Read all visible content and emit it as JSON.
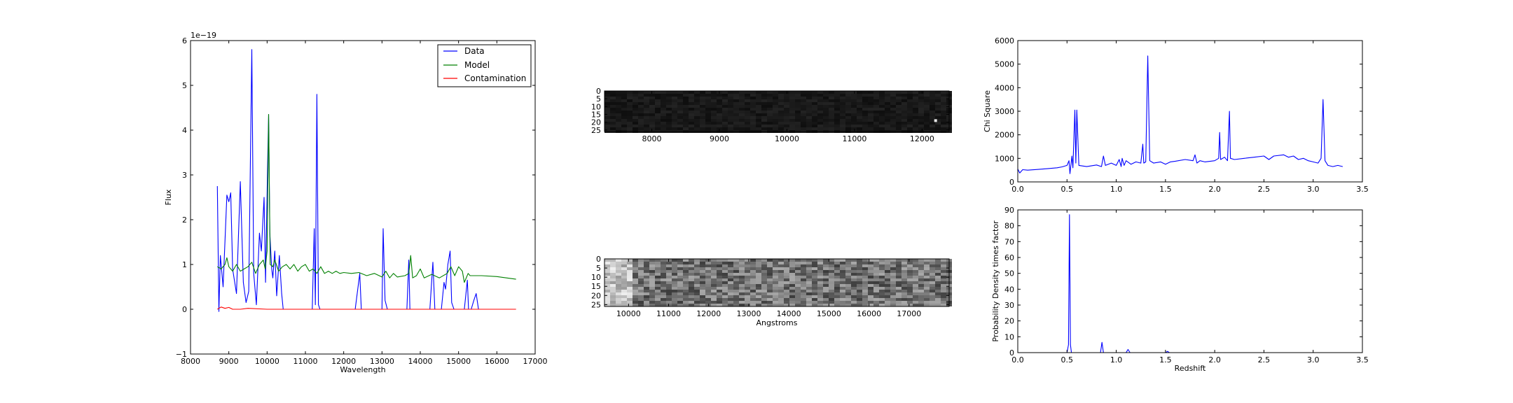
{
  "chart_data": [
    {
      "id": "spectrum",
      "type": "line",
      "xlabel": "Wavelength",
      "ylabel": "Flux",
      "offset_label": "1e−19",
      "xlim": [
        8000,
        17000
      ],
      "ylim": [
        -1,
        6
      ],
      "xticks": [
        8000,
        9000,
        10000,
        11000,
        12000,
        13000,
        14000,
        15000,
        16000,
        17000
      ],
      "yticks": [
        -1,
        0,
        1,
        2,
        3,
        4,
        5,
        6
      ],
      "legend": {
        "placement": "top-right"
      },
      "series": [
        {
          "name": "Data",
          "color": "#0000ff",
          "points": [
            [
              8700,
              2.75
            ],
            [
              8740,
              -0.05
            ],
            [
              8780,
              1.2
            ],
            [
              8850,
              0.5
            ],
            [
              8950,
              2.55
            ],
            [
              9000,
              2.4
            ],
            [
              9050,
              2.6
            ],
            [
              9100,
              0.9
            ],
            [
              9200,
              0.35
            ],
            [
              9300,
              2.85
            ],
            [
              9380,
              0.6
            ],
            [
              9450,
              0.15
            ],
            [
              9520,
              0.4
            ],
            [
              9600,
              5.8
            ],
            [
              9650,
              0.8
            ],
            [
              9720,
              0.1
            ],
            [
              9800,
              1.7
            ],
            [
              9850,
              1.3
            ],
            [
              9920,
              2.5
            ],
            [
              9960,
              0.6
            ],
            [
              10010,
              3.1
            ],
            [
              10040,
              4.35
            ],
            [
              10070,
              1.7
            ],
            [
              10120,
              0.9
            ],
            [
              10150,
              0.7
            ],
            [
              10200,
              1.3
            ],
            [
              10250,
              0.3
            ],
            [
              10320,
              1.2
            ],
            [
              10380,
              0.35
            ],
            [
              10420,
              0.0
            ],
            [
              11000,
              0.0
            ],
            [
              11180,
              0.0
            ],
            [
              11230,
              1.8
            ],
            [
              11260,
              0.1
            ],
            [
              11300,
              4.8
            ],
            [
              11340,
              0.1
            ],
            [
              11380,
              0.0
            ],
            [
              12300,
              0.0
            ],
            [
              12420,
              0.8
            ],
            [
              12460,
              0.0
            ],
            [
              13000,
              0.0
            ],
            [
              13030,
              1.8
            ],
            [
              13080,
              0.2
            ],
            [
              13140,
              0.0
            ],
            [
              13650,
              0.0
            ],
            [
              13700,
              1.1
            ],
            [
              13730,
              0.0
            ],
            [
              14250,
              0.0
            ],
            [
              14330,
              1.05
            ],
            [
              14380,
              0.0
            ],
            [
              14550,
              0.0
            ],
            [
              14620,
              0.6
            ],
            [
              14660,
              0.45
            ],
            [
              14720,
              1.0
            ],
            [
              14780,
              1.3
            ],
            [
              14820,
              0.15
            ],
            [
              14880,
              0.0
            ],
            [
              15150,
              0.0
            ],
            [
              15230,
              0.65
            ],
            [
              15260,
              0.0
            ],
            [
              15330,
              0.0
            ],
            [
              15400,
              0.2
            ],
            [
              15460,
              0.35
            ],
            [
              15520,
              0.0
            ]
          ]
        },
        {
          "name": "Model",
          "color": "#008000",
          "points": [
            [
              8700,
              0.95
            ],
            [
              8800,
              0.9
            ],
            [
              8900,
              1.0
            ],
            [
              8950,
              1.15
            ],
            [
              9000,
              0.95
            ],
            [
              9100,
              0.85
            ],
            [
              9200,
              1.0
            ],
            [
              9300,
              0.85
            ],
            [
              9400,
              0.9
            ],
            [
              9500,
              0.95
            ],
            [
              9600,
              1.05
            ],
            [
              9700,
              0.8
            ],
            [
              9800,
              1.0
            ],
            [
              9900,
              1.1
            ],
            [
              9950,
              0.9
            ],
            [
              10000,
              1.3
            ],
            [
              10040,
              4.35
            ],
            [
              10080,
              1.0
            ],
            [
              10150,
              0.95
            ],
            [
              10200,
              1.1
            ],
            [
              10300,
              0.85
            ],
            [
              10400,
              0.95
            ],
            [
              10500,
              1.0
            ],
            [
              10600,
              0.9
            ],
            [
              10700,
              1.0
            ],
            [
              10800,
              0.85
            ],
            [
              10900,
              0.95
            ],
            [
              11000,
              1.0
            ],
            [
              11100,
              0.85
            ],
            [
              11200,
              0.9
            ],
            [
              11300,
              0.8
            ],
            [
              11400,
              0.95
            ],
            [
              11500,
              0.8
            ],
            [
              11600,
              0.85
            ],
            [
              11700,
              0.8
            ],
            [
              11800,
              0.85
            ],
            [
              11900,
              0.8
            ],
            [
              12000,
              0.82
            ],
            [
              12200,
              0.8
            ],
            [
              12400,
              0.82
            ],
            [
              12600,
              0.75
            ],
            [
              12800,
              0.8
            ],
            [
              13000,
              0.72
            ],
            [
              13100,
              0.85
            ],
            [
              13200,
              0.7
            ],
            [
              13300,
              0.8
            ],
            [
              13400,
              0.72
            ],
            [
              13600,
              0.75
            ],
            [
              13700,
              0.8
            ],
            [
              13750,
              1.2
            ],
            [
              13800,
              0.7
            ],
            [
              13900,
              0.75
            ],
            [
              14000,
              0.9
            ],
            [
              14100,
              0.7
            ],
            [
              14300,
              0.78
            ],
            [
              14500,
              0.7
            ],
            [
              14700,
              0.8
            ],
            [
              14800,
              0.95
            ],
            [
              14900,
              0.75
            ],
            [
              15000,
              0.95
            ],
            [
              15100,
              0.85
            ],
            [
              15150,
              0.6
            ],
            [
              15250,
              0.8
            ],
            [
              15300,
              0.75
            ],
            [
              15600,
              0.75
            ],
            [
              16000,
              0.73
            ],
            [
              16500,
              0.67
            ]
          ]
        },
        {
          "name": "Contamination",
          "color": "#ff0000",
          "points": [
            [
              8700,
              0.0
            ],
            [
              8800,
              0.05
            ],
            [
              8900,
              0.02
            ],
            [
              9000,
              0.04
            ],
            [
              9100,
              0.0
            ],
            [
              9300,
              0.0
            ],
            [
              9500,
              0.02
            ],
            [
              10000,
              0.0
            ],
            [
              12000,
              0.0
            ],
            [
              14000,
              0.0
            ],
            [
              15000,
              0.0
            ],
            [
              16500,
              0.0
            ]
          ]
        }
      ]
    },
    {
      "id": "image-2d",
      "type": "heatmap",
      "xlabel": "",
      "xlim": [
        7300,
        12400
      ],
      "ylim": [
        26,
        0
      ],
      "xticks": [
        8000,
        9000,
        10000,
        11000,
        12000
      ],
      "yticks": [
        0,
        5,
        10,
        15,
        20,
        25
      ],
      "colormap": "gray",
      "brightness": "dark",
      "hotspot": {
        "x": 12200,
        "y": 19
      }
    },
    {
      "id": "contam-2d",
      "type": "heatmap",
      "xlabel": "Angstroms",
      "xlim": [
        9400,
        18000
      ],
      "ylim": [
        26,
        0
      ],
      "xticks": [
        10000,
        11000,
        12000,
        13000,
        14000,
        15000,
        16000,
        17000
      ],
      "yticks": [
        0,
        5,
        10,
        15,
        20,
        25
      ],
      "colormap": "gray",
      "brightness": "medium"
    },
    {
      "id": "chi-square",
      "type": "line",
      "xlabel": "",
      "ylabel": "Chi Square",
      "xlim": [
        0.0,
        3.5
      ],
      "ylim": [
        0,
        6000
      ],
      "xticks": [
        0.0,
        0.5,
        1.0,
        1.5,
        2.0,
        2.5,
        3.0,
        3.5
      ],
      "xtick_labels": [
        "0.0",
        "0.5",
        "1.0",
        "1.5",
        "2.0",
        "2.5",
        "3.0",
        "3.5"
      ],
      "yticks": [
        0,
        1000,
        2000,
        3000,
        4000,
        5000,
        6000
      ],
      "series": [
        {
          "color": "#0000ff",
          "points": [
            [
              0.0,
              550
            ],
            [
              0.02,
              380
            ],
            [
              0.05,
              520
            ],
            [
              0.1,
              500
            ],
            [
              0.2,
              530
            ],
            [
              0.3,
              560
            ],
            [
              0.4,
              600
            ],
            [
              0.45,
              640
            ],
            [
              0.5,
              700
            ],
            [
              0.52,
              900
            ],
            [
              0.53,
              350
            ],
            [
              0.55,
              1100
            ],
            [
              0.56,
              600
            ],
            [
              0.58,
              3050
            ],
            [
              0.59,
              800
            ],
            [
              0.6,
              3050
            ],
            [
              0.62,
              700
            ],
            [
              0.7,
              650
            ],
            [
              0.8,
              720
            ],
            [
              0.85,
              650
            ],
            [
              0.87,
              1100
            ],
            [
              0.89,
              700
            ],
            [
              0.95,
              800
            ],
            [
              1.0,
              700
            ],
            [
              1.03,
              950
            ],
            [
              1.05,
              650
            ],
            [
              1.06,
              1000
            ],
            [
              1.08,
              700
            ],
            [
              1.1,
              900
            ],
            [
              1.15,
              750
            ],
            [
              1.2,
              850
            ],
            [
              1.25,
              800
            ],
            [
              1.27,
              1600
            ],
            [
              1.28,
              800
            ],
            [
              1.3,
              850
            ],
            [
              1.32,
              5350
            ],
            [
              1.34,
              900
            ],
            [
              1.38,
              800
            ],
            [
              1.45,
              850
            ],
            [
              1.5,
              750
            ],
            [
              1.55,
              850
            ],
            [
              1.6,
              880
            ],
            [
              1.7,
              950
            ],
            [
              1.78,
              900
            ],
            [
              1.8,
              1150
            ],
            [
              1.82,
              800
            ],
            [
              1.85,
              900
            ],
            [
              1.9,
              850
            ],
            [
              2.0,
              900
            ],
            [
              2.04,
              1000
            ],
            [
              2.05,
              2100
            ],
            [
              2.06,
              950
            ],
            [
              2.1,
              1050
            ],
            [
              2.13,
              900
            ],
            [
              2.15,
              3000
            ],
            [
              2.16,
              1000
            ],
            [
              2.2,
              950
            ],
            [
              2.3,
              1000
            ],
            [
              2.4,
              1050
            ],
            [
              2.5,
              1100
            ],
            [
              2.55,
              950
            ],
            [
              2.6,
              1100
            ],
            [
              2.7,
              1150
            ],
            [
              2.75,
              1050
            ],
            [
              2.8,
              1100
            ],
            [
              2.85,
              950
            ],
            [
              2.9,
              1000
            ],
            [
              2.95,
              900
            ],
            [
              3.0,
              850
            ],
            [
              3.05,
              800
            ],
            [
              3.08,
              1000
            ],
            [
              3.1,
              3500
            ],
            [
              3.12,
              900
            ],
            [
              3.15,
              700
            ],
            [
              3.2,
              650
            ],
            [
              3.25,
              700
            ],
            [
              3.3,
              650
            ]
          ]
        }
      ]
    },
    {
      "id": "pdf",
      "type": "line",
      "xlabel": "Redshift",
      "ylabel": "Probability Density times factor",
      "xlim": [
        0.0,
        3.5
      ],
      "ylim": [
        0,
        90
      ],
      "xticks": [
        0.0,
        0.5,
        1.0,
        1.5,
        2.0,
        2.5,
        3.0,
        3.5
      ],
      "xtick_labels": [
        "0.0",
        "0.5",
        "1.0",
        "1.5",
        "2.0",
        "2.5",
        "3.0",
        "3.5"
      ],
      "yticks": [
        0,
        10,
        20,
        30,
        40,
        50,
        60,
        70,
        80,
        90
      ],
      "series": [
        {
          "color": "#0000ff",
          "points": [
            [
              0.0,
              0
            ],
            [
              0.5,
              0
            ],
            [
              0.515,
              5
            ],
            [
              0.525,
              87
            ],
            [
              0.535,
              5
            ],
            [
              0.545,
              0
            ],
            [
              0.84,
              0
            ],
            [
              0.855,
              6.5
            ],
            [
              0.87,
              0
            ],
            [
              1.1,
              0
            ],
            [
              1.12,
              2
            ],
            [
              1.14,
              0
            ],
            [
              1.5,
              0
            ],
            [
              1.52,
              0.8
            ],
            [
              1.54,
              0
            ],
            [
              3.3,
              0
            ]
          ]
        }
      ]
    }
  ]
}
